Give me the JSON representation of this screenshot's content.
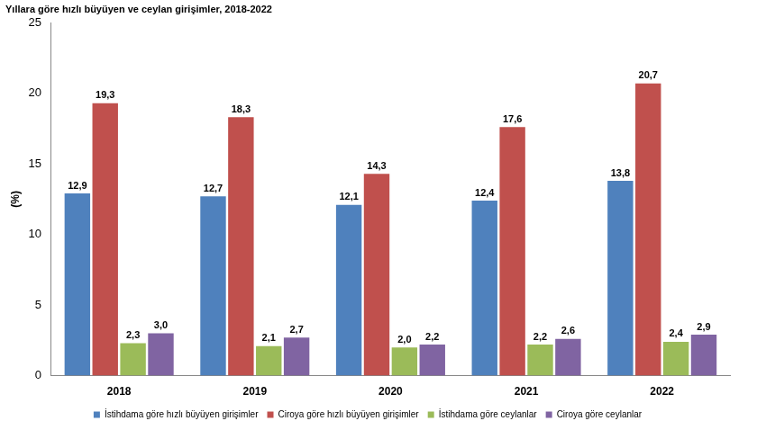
{
  "chart_data": {
    "type": "bar",
    "title": "Yıllara göre hızlı büyüyen ve ceylan girişimler, 2018-2022",
    "y_label": "(%)",
    "categories": [
      "2018",
      "2019",
      "2020",
      "2021",
      "2022"
    ],
    "series": [
      {
        "name": "İstihdama göre hızlı büyüyen girişimler",
        "color": "#4f81bd",
        "values": [
          12.9,
          12.7,
          12.1,
          12.4,
          13.8
        ],
        "value_labels": [
          "12,9",
          "12,7",
          "12,1",
          "12,4",
          "13,8"
        ]
      },
      {
        "name": "Ciroya göre hızlı büyüyen girişimler",
        "color": "#c0504d",
        "values": [
          19.3,
          18.3,
          14.3,
          17.6,
          20.7
        ],
        "value_labels": [
          "19,3",
          "18,3",
          "14,3",
          "17,6",
          "20,7"
        ]
      },
      {
        "name": "İstihdama göre ceylanlar",
        "color": "#9bbb59",
        "values": [
          2.3,
          2.1,
          2.0,
          2.2,
          2.4
        ],
        "value_labels": [
          "2,3",
          "2,1",
          "2,0",
          "2,2",
          "2,4"
        ]
      },
      {
        "name": "Ciroya göre ceylanlar",
        "color": "#8064a2",
        "values": [
          3.0,
          2.7,
          2.2,
          2.6,
          2.9
        ],
        "value_labels": [
          "3,0",
          "2,7",
          "2,2",
          "2,6",
          "2,9"
        ]
      }
    ],
    "ylim": [
      0,
      25
    ],
    "yticks": [
      0,
      5,
      10,
      15,
      20,
      25
    ],
    "grid": false,
    "legend": "bottom",
    "data_labels": true
  }
}
